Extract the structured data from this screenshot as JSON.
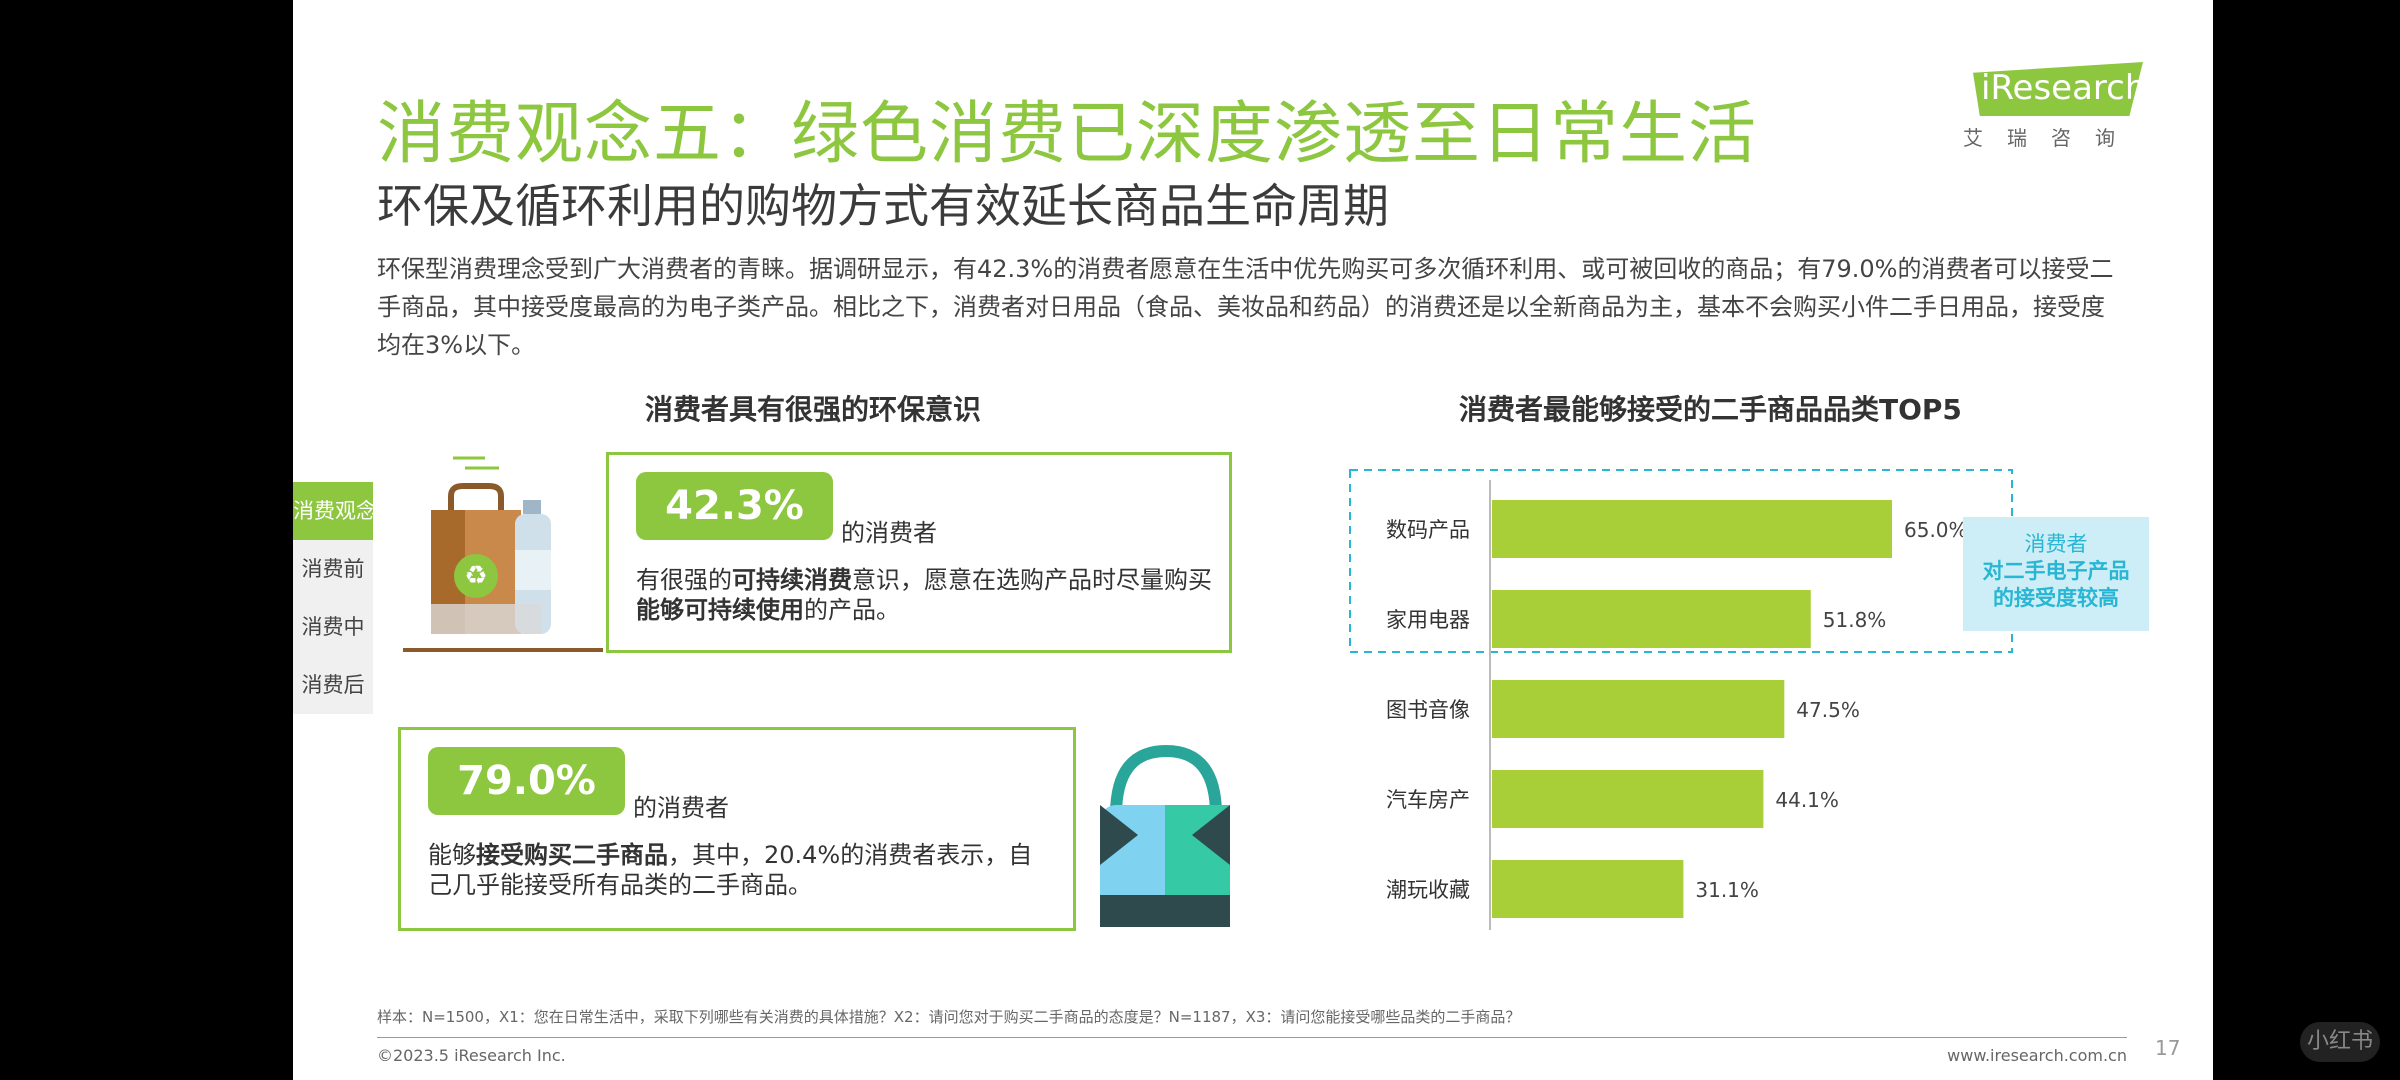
{
  "header": {
    "title": "消费观念五：绿色消费已深度渗透至日常生活",
    "subtitle": "环保及循环利用的购物方式有效延长商品生命周期",
    "description": "环保型消费理念受到广大消费者的青睐。据调研显示，有42.3%的消费者愿意在生活中优先购买可多次循环利用、或可被回收的商品；有79.0%的消费者可以接受二手商品，其中接受度最高的为电子类产品。相比之下，消费者对日用品（食品、美妆品和药品）的消费还是以全新商品为主，基本不会购买小件二手日用品，接受度均在3%以下。"
  },
  "logo": {
    "text": "iResearch",
    "sub": "艾瑞咨询"
  },
  "side_nav": {
    "items": [
      {
        "label": "消费观念",
        "active": true
      },
      {
        "label": "消费前",
        "active": false
      },
      {
        "label": "消费中",
        "active": false
      },
      {
        "label": "消费后",
        "active": false
      }
    ]
  },
  "left_section": {
    "title": "消费者具有很强的环保意识",
    "card1": {
      "pct": "42.3%",
      "label": "的消费者",
      "text_a": "有很强的",
      "text_b": "可持续消费",
      "text_c": "意识，愿意在选购产品时尽量购买",
      "text_d": "能够可持续使用",
      "text_e": "的产品。"
    },
    "card2": {
      "pct": "79.0%",
      "label": "的消费者",
      "text_a": "能够",
      "text_b": "接受购买二手商品",
      "text_c": "，其中，20.4%的消费者表示，自己几乎能接受所有品类的二手商品。"
    }
  },
  "chart_data": {
    "type": "bar",
    "orientation": "horizontal",
    "title": "消费者最能够接受的二手商品品类TOP5",
    "categories": [
      "数码产品",
      "家用电器",
      "图书音像",
      "汽车房产",
      "潮玩收藏"
    ],
    "values": [
      65.0,
      51.8,
      47.5,
      44.1,
      31.1
    ],
    "value_labels": [
      "65.0%",
      "51.8%",
      "47.5%",
      "44.1%",
      "31.1%"
    ],
    "unit": "%",
    "bar_color": "#a8cf38",
    "highlight_range": [
      0,
      1
    ],
    "highlight_color": "#29b6d4",
    "grid": false,
    "callout": {
      "line1": "消费者",
      "line2": "对二手电子产品",
      "line3": "的接受度较高"
    }
  },
  "footer": {
    "note": "样本：N=1500，X1：您在日常生活中，采取下列哪些有关消费的具体措施？X2：请问您对于购买二手商品的态度是？N=1187，X3：请问您能接受哪些品类的二手商品？",
    "copyright": "©2023.5 iResearch Inc.",
    "website": "www.iresearch.com.cn",
    "page": "17"
  },
  "watermark": "小红书"
}
